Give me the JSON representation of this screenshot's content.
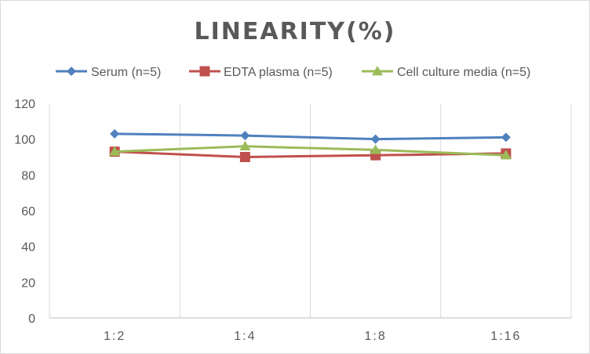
{
  "chart_data": {
    "type": "line",
    "title": "LINEARITY(%)",
    "categories": [
      "1:2",
      "1:4",
      "1:8",
      "1:16"
    ],
    "ylim": [
      0,
      120
    ],
    "yticks": [
      0,
      20,
      40,
      60,
      80,
      100,
      120
    ],
    "grid": "vertical",
    "legend_position": "top",
    "series": [
      {
        "name": "Serum (n=5)",
        "values": [
          103,
          102,
          100,
          101
        ],
        "color": "#4f81bd",
        "marker": "diamond"
      },
      {
        "name": "EDTA plasma (n=5)",
        "values": [
          93,
          90,
          91,
          92
        ],
        "color": "#c0504d",
        "marker": "square"
      },
      {
        "name": "Cell culture media (n=5)",
        "values": [
          93,
          96,
          94,
          91
        ],
        "color": "#9bbb59",
        "marker": "triangle"
      }
    ]
  }
}
